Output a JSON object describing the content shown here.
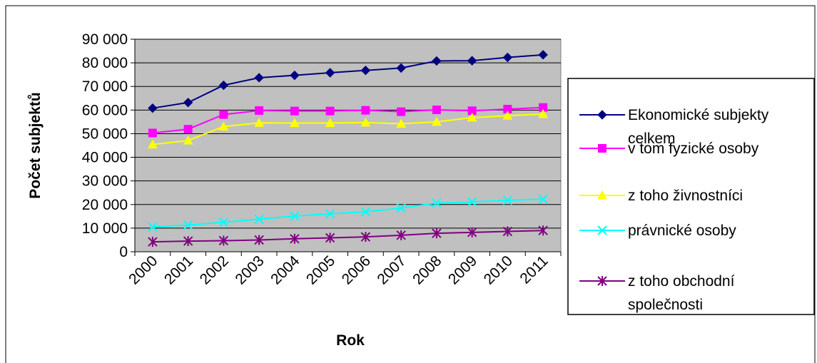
{
  "chart_data": {
    "type": "line",
    "title": "",
    "xlabel": "Rok",
    "ylabel": "Počet subjektů",
    "ylim": [
      0,
      90000
    ],
    "ytick_values": [
      0,
      10000,
      20000,
      30000,
      40000,
      50000,
      60000,
      70000,
      80000,
      90000
    ],
    "ytick_labels": [
      "0",
      "10 000",
      "20 000",
      "30 000",
      "40 000",
      "50 000",
      "60 000",
      "70 000",
      "80 000",
      "90 000"
    ],
    "grid": true,
    "legend_position": "right",
    "categories": [
      "2000",
      "2001",
      "2002",
      "2003",
      "2004",
      "2005",
      "2006",
      "2007",
      "2008",
      "2009",
      "2010",
      "2011"
    ],
    "series": [
      {
        "name": "Ekonomické subjekty celkem",
        "legend_lines": [
          "Ekonomické subjekty",
          "celkem"
        ],
        "color": "#000080",
        "marker": "diamond",
        "values": [
          60800,
          63200,
          70500,
          73700,
          74700,
          75800,
          76800,
          77800,
          80800,
          80900,
          82300,
          83400
        ]
      },
      {
        "name": "v tom fyzické osoby",
        "legend_lines": [
          "v tom fyzické osoby"
        ],
        "color": "#FF00FF",
        "marker": "square",
        "values": [
          50300,
          51900,
          58100,
          59800,
          59600,
          59600,
          59900,
          59300,
          60100,
          59700,
          60400,
          61100
        ]
      },
      {
        "name": "z toho živnostníci",
        "legend_lines": [
          "z toho živnostníci"
        ],
        "color": "#FFFF00",
        "marker": "triangle",
        "values": [
          45400,
          47100,
          53000,
          54600,
          54500,
          54500,
          54700,
          54200,
          55000,
          56800,
          57600,
          58300
        ]
      },
      {
        "name": "právnické osoby",
        "legend_lines": [
          "právnické osoby"
        ],
        "color": "#00FFFF",
        "marker": "x",
        "values": [
          10500,
          11300,
          12500,
          13800,
          15100,
          16100,
          16900,
          18500,
          20600,
          21100,
          21800,
          22300
        ]
      },
      {
        "name": "z toho obchodní společnosti",
        "legend_lines": [
          "z toho obchodní",
          "společnosti"
        ],
        "color": "#800080",
        "marker": "star",
        "values": [
          4200,
          4500,
          4700,
          5000,
          5500,
          5900,
          6300,
          7000,
          7800,
          8200,
          8600,
          9000
        ]
      }
    ]
  }
}
